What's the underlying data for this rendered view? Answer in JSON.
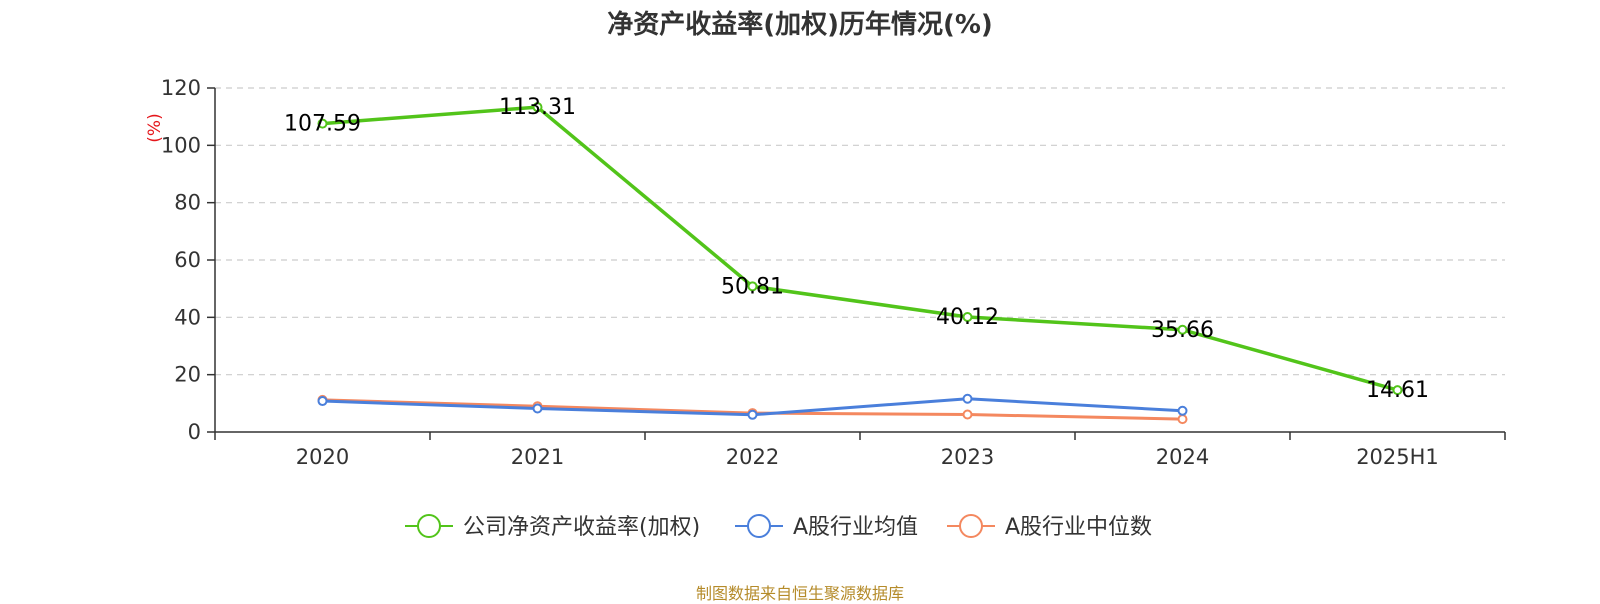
{
  "chart_data": {
    "type": "line",
    "title": "净资产收益率(加权)历年情况(%)",
    "ylabel": "(%)",
    "ylabel_color": "#e5161b",
    "categories": [
      "2020",
      "2021",
      "2022",
      "2023",
      "2024",
      "2025H1"
    ],
    "ylim": [
      0,
      120
    ],
    "yticks": [
      0,
      20,
      40,
      60,
      80,
      100,
      120
    ],
    "grid": true,
    "legend_position": "bottom",
    "series": [
      {
        "name": "公司净资产收益率(加权)",
        "color": "#52c41a",
        "values": [
          107.59,
          113.31,
          50.81,
          40.12,
          35.66,
          14.61
        ],
        "data_labels": [
          "107.59",
          "113.31",
          "50.81",
          "40.12",
          "35.66",
          "14.61"
        ]
      },
      {
        "name": "A股行业均值",
        "color": "#4a7fdb",
        "values": [
          10.8,
          8.2,
          6.0,
          11.6,
          7.4,
          null
        ]
      },
      {
        "name": "A股行业中位数",
        "color": "#f4885f",
        "values": [
          11.2,
          9.0,
          6.6,
          6.1,
          4.5,
          null
        ]
      }
    ]
  },
  "source": "制图数据来自恒生聚源数据库"
}
